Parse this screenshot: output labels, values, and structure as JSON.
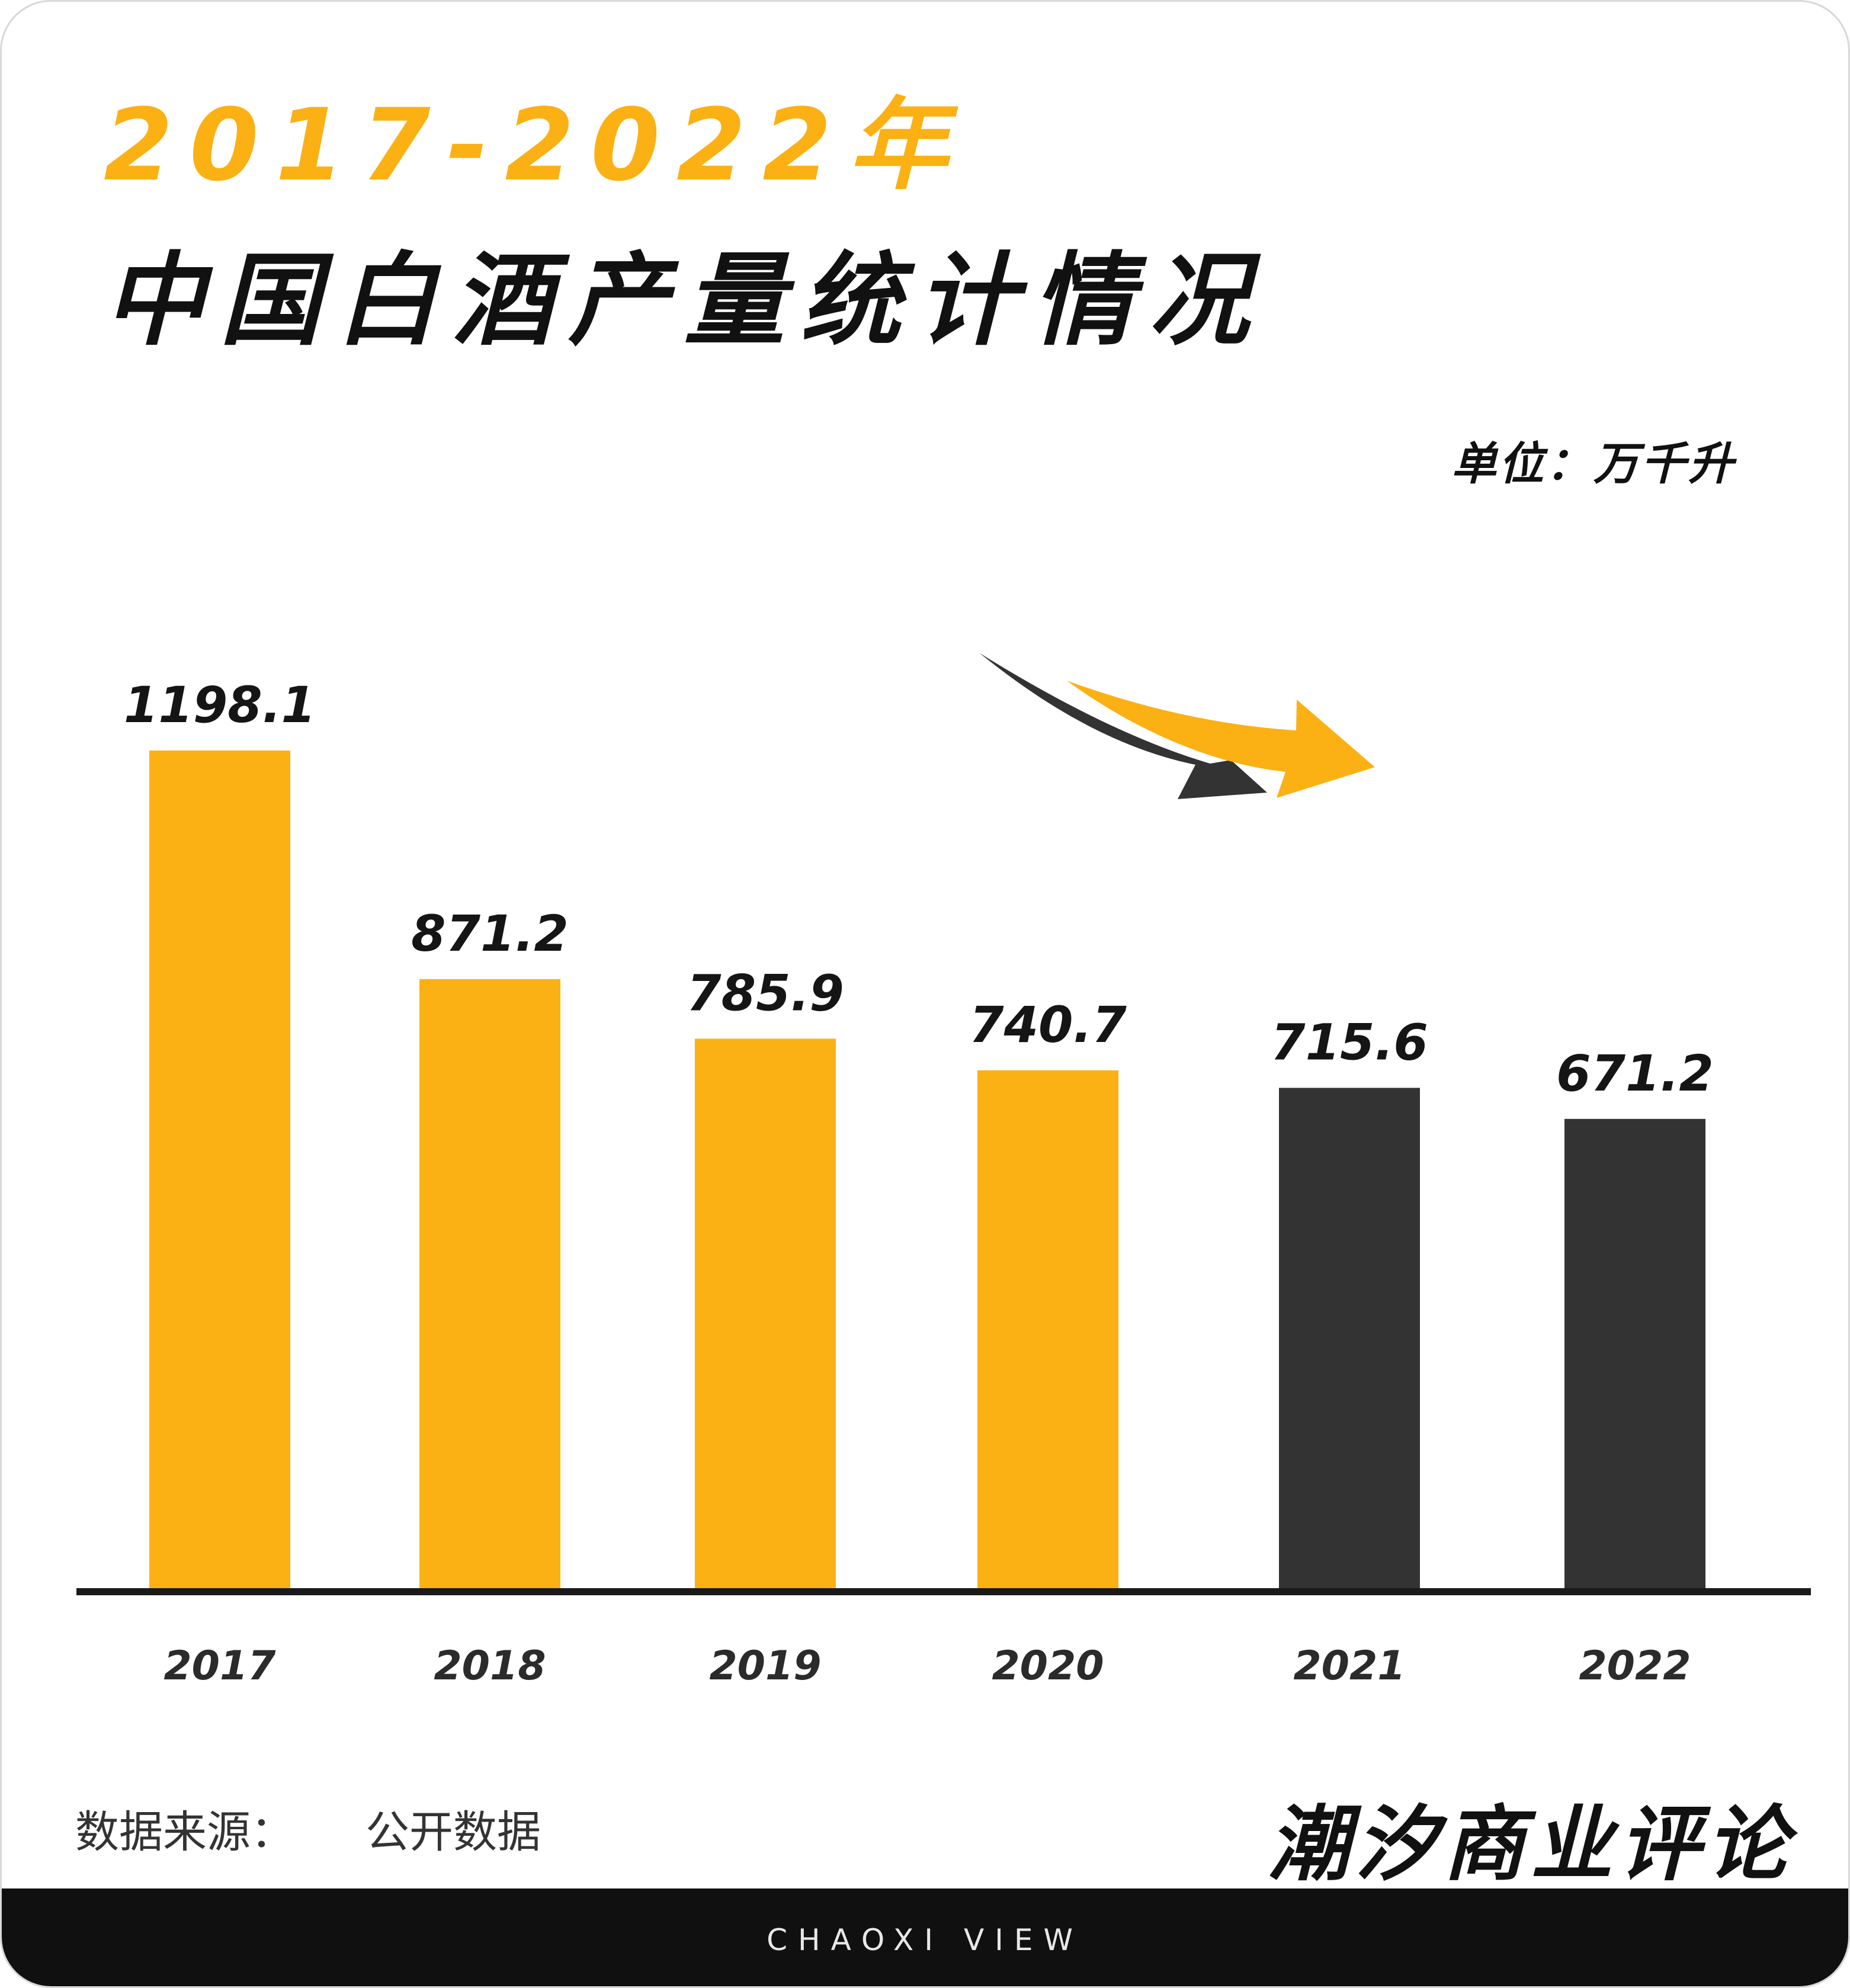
{
  "header": {
    "title_years": "2017-2022年",
    "title_main": "中国白酒产量统计情况",
    "unit": "单位：万千升"
  },
  "colors": {
    "accent": "#fbb114",
    "dark": "#333333",
    "text": "#111111",
    "footer_bg": "#101010"
  },
  "chart_data": {
    "type": "bar",
    "title": "2017-2022年 中国白酒产量统计情况",
    "unit": "单位：万千升",
    "categories": [
      "2017",
      "2018",
      "2019",
      "2020",
      "2021",
      "2022"
    ],
    "values": [
      1198.1,
      871.2,
      785.9,
      740.7,
      715.6,
      671.2
    ],
    "value_labels": [
      "1198.1",
      "871.2",
      "785.9",
      "740.7",
      "715.6",
      "671.2"
    ],
    "bar_colors": [
      "#fbb114",
      "#fbb114",
      "#fbb114",
      "#fbb114",
      "#333333",
      "#333333"
    ],
    "ylim": [
      0,
      1198.1
    ],
    "grid": false,
    "legend": "none"
  },
  "footer": {
    "source_label": "数据来源：",
    "source_value": "公开数据",
    "brand": "潮汐商业评论",
    "brand_en": "CHAOXI VIEW"
  }
}
